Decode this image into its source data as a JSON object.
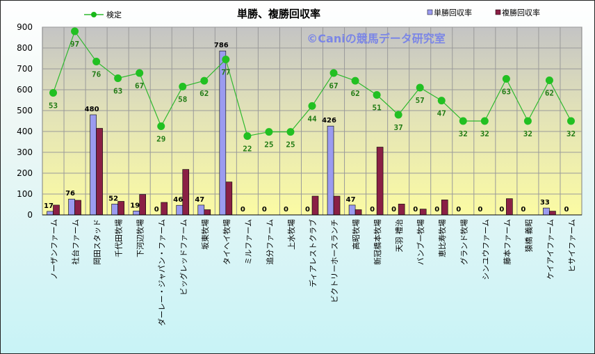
{
  "chart_data": {
    "type": "bar",
    "title": "単勝、複勝回収率",
    "watermark": "©Caniの競馬データ研究室",
    "ylim": [
      0,
      900
    ],
    "yticks": [
      0,
      100,
      200,
      300,
      400,
      500,
      600,
      700,
      800,
      900
    ],
    "categories": [
      "ノーザンファーム",
      "社台ファーム",
      "岡田スタッド",
      "千代田牧場",
      "下河辺牧場",
      "ダーレー・ジャパン・ファーム",
      "ビッグレッドファーム",
      "坂東牧場",
      "タイヘイ牧場",
      "ミルファーム",
      "追分ファーム",
      "上水牧場",
      "ディアレストクラブ",
      "ビクトリーホースランチ",
      "高昭牧場",
      "新冠橋本牧場",
      "天羽 禮治",
      "バンブー牧場",
      "恵比寿牧場",
      "グランド牧場",
      "シンユウファーム",
      "藤本ファーム",
      "猿橋 義昭",
      "ケイアイファーム",
      "ヒサイファーム"
    ],
    "series": [
      {
        "name": "単勝回収率",
        "kind": "bar",
        "color": "#9b9bf0",
        "values": [
          17,
          76,
          480,
          52,
          19,
          0,
          46,
          47,
          786,
          0,
          0,
          0,
          0,
          426,
          47,
          0,
          0,
          0,
          0,
          0,
          0,
          0,
          0,
          33,
          0
        ]
      },
      {
        "name": "複勝回収率",
        "kind": "bar",
        "color": "#8a2045",
        "values": [
          47,
          70,
          415,
          65,
          98,
          60,
          218,
          25,
          158,
          0,
          0,
          0,
          90,
          90,
          25,
          325,
          52,
          28,
          72,
          0,
          0,
          78,
          0,
          18,
          0
        ]
      },
      {
        "name": "検定",
        "kind": "line",
        "color": "#2eb82e",
        "values": [
          585,
          880,
          735,
          655,
          680,
          425,
          615,
          643,
          745,
          378,
          398,
          398,
          522,
          680,
          643,
          575,
          480,
          610,
          548,
          450,
          450,
          652,
          450,
          645,
          450
        ],
        "labels": [
          53,
          97,
          76,
          63,
          67,
          29,
          58,
          62,
          77,
          22,
          25,
          25,
          44,
          67,
          62,
          51,
          37,
          57,
          47,
          32,
          32,
          63,
          32,
          62,
          32
        ]
      }
    ],
    "legend": {
      "line": "検定",
      "bar1": "単勝回収率",
      "bar2": "複勝回収率",
      "placement": "top"
    },
    "grid": true
  }
}
